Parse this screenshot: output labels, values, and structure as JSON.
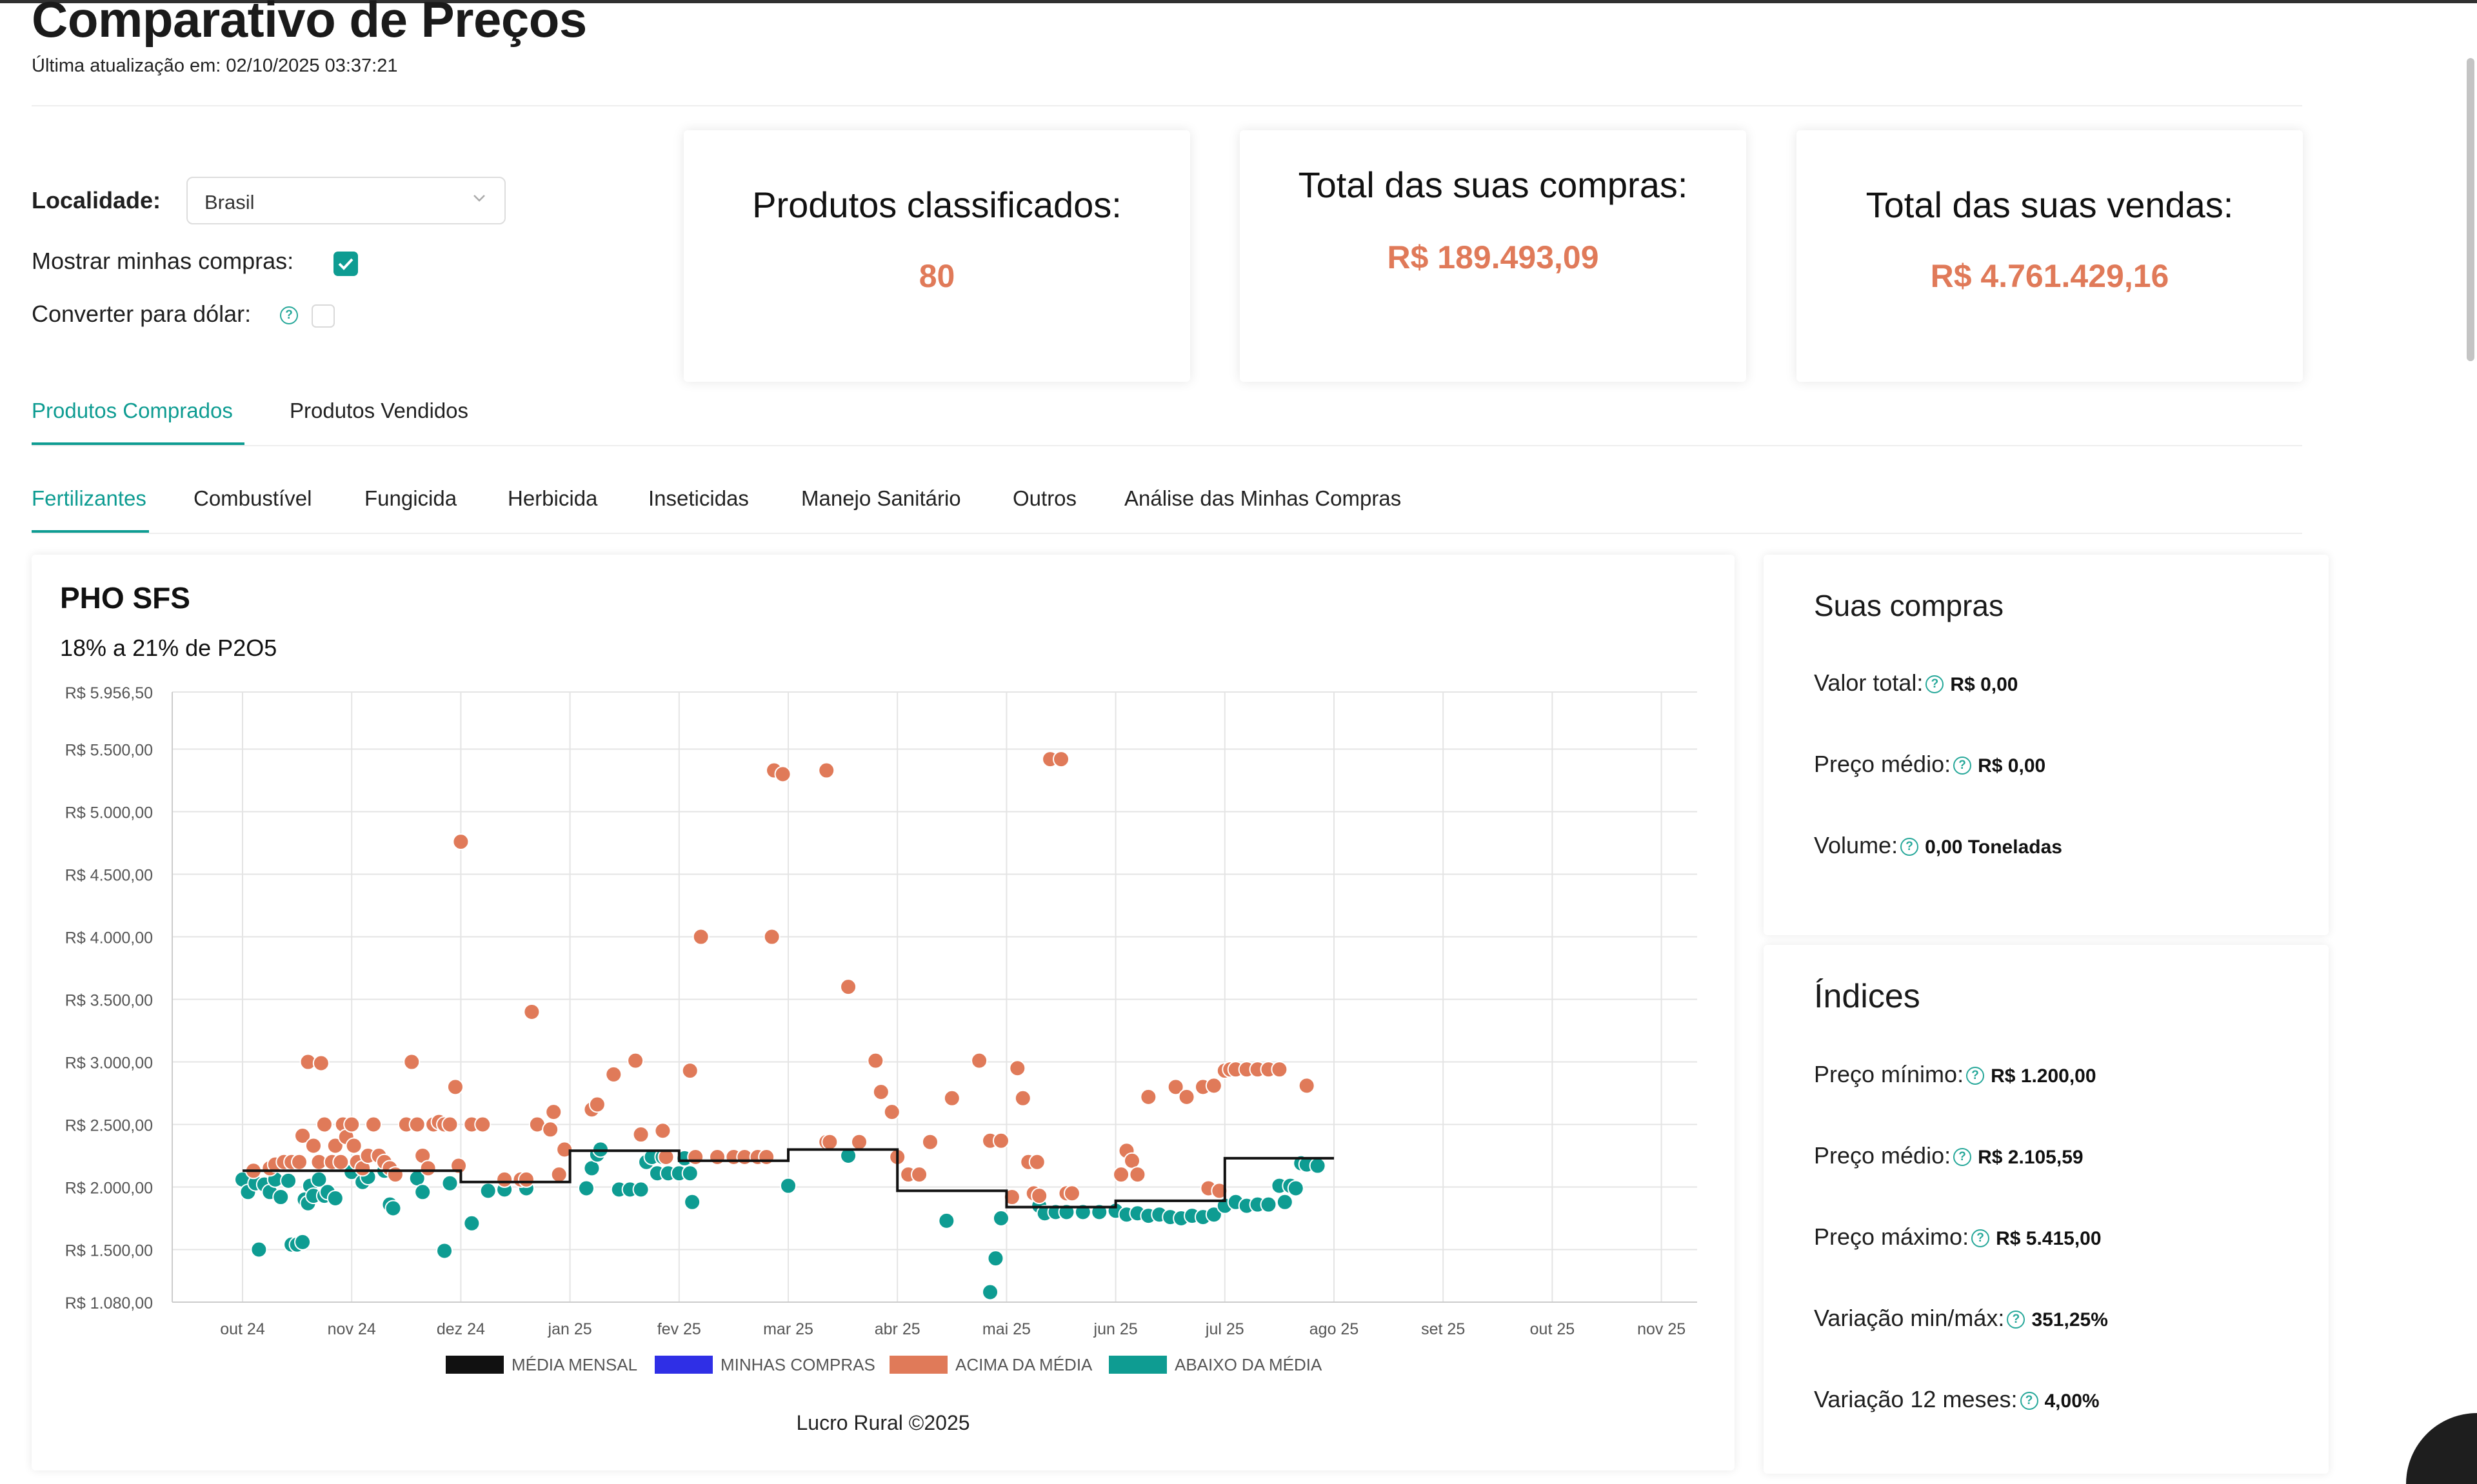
{
  "header": {
    "title": "Comparativo de Preços",
    "updated": "Última atualização em: 02/10/2025 03:37:21"
  },
  "filters": {
    "locality_label": "Localidade:",
    "locality_value": "Brasil",
    "show_purchases_label": "Mostrar minhas compras:",
    "show_purchases_checked": true,
    "convert_dollar_label": "Converter para dólar:",
    "convert_dollar_checked": false
  },
  "stats": {
    "classified_title": "Produtos classificados:",
    "classified_value": "80",
    "purchases_title": "Total das suas compras:",
    "purchases_value": "R$ 189.493,09",
    "sales_title": "Total das suas vendas:",
    "sales_value": "R$ 4.761.429,16"
  },
  "main_tabs": [
    "Produtos Comprados",
    "Produtos Vendidos"
  ],
  "category_tabs": [
    "Fertilizantes",
    "Combustível",
    "Fungicida",
    "Herbicida",
    "Inseticidas",
    "Manejo Sanitário",
    "Outros",
    "Análise das Minhas Compras"
  ],
  "product": {
    "name": "PHO SFS",
    "spec": "18% a 21% de P2O5"
  },
  "colors": {
    "accent": "#0e9c92",
    "above": "#e07a59",
    "below": "#0e9c92",
    "mine": "#2f2fe6",
    "avg": "#111111"
  },
  "chart_data": {
    "type": "scatter",
    "y_tick_labels": [
      "R$ 1.080,00",
      "R$ 1.500,00",
      "R$ 2.000,00",
      "R$ 2.500,00",
      "R$ 3.000,00",
      "R$ 3.500,00",
      "R$ 4.000,00",
      "R$ 4.500,00",
      "R$ 5.000,00",
      "R$ 5.500,00",
      "R$ 5.956,50"
    ],
    "y_tick_values": [
      1080,
      1500,
      2000,
      2500,
      3000,
      3500,
      4000,
      4500,
      5000,
      5500,
      5956.5
    ],
    "ylim": [
      1080,
      5956.5
    ],
    "x_tick_labels": [
      "out 24",
      "nov 24",
      "dez 24",
      "jan 25",
      "fev 25",
      "mar 25",
      "abr 25",
      "mai 25",
      "jun 25",
      "jul 25",
      "ago 25",
      "set 25",
      "out 25",
      "nov 25"
    ],
    "grid": true,
    "legend": [
      "MÉDIA MENSAL",
      "MINHAS COMPRAS",
      "ACIMA DA MÉDIA",
      "ABAIXO DA MÉDIA"
    ],
    "legend_position": "bottom",
    "monthly_average": [
      {
        "month": "out 24",
        "value": 2130
      },
      {
        "month": "nov 24",
        "value": 2130
      },
      {
        "month": "dez 24",
        "value": 2040
      },
      {
        "month": "jan 25",
        "value": 2290
      },
      {
        "month": "fev 25",
        "value": 2210
      },
      {
        "month": "mar 25",
        "value": 2300
      },
      {
        "month": "abr 25",
        "value": 1970
      },
      {
        "month": "mai 25",
        "value": 1840
      },
      {
        "month": "jun 25",
        "value": 1890
      },
      {
        "month": "jul 25",
        "value": 2230
      }
    ],
    "above_points": [
      [
        0.1,
        2130
      ],
      [
        0.25,
        2150
      ],
      [
        0.3,
        2180
      ],
      [
        0.38,
        2200
      ],
      [
        0.45,
        2200
      ],
      [
        0.52,
        2200
      ],
      [
        0.55,
        2410
      ],
      [
        0.6,
        3000
      ],
      [
        0.65,
        2330
      ],
      [
        0.7,
        2200
      ],
      [
        0.72,
        2990
      ],
      [
        0.75,
        2500
      ],
      [
        0.82,
        2200
      ],
      [
        0.85,
        2330
      ],
      [
        0.9,
        2200
      ],
      [
        0.92,
        2500
      ],
      [
        0.95,
        2400
      ],
      [
        1.0,
        2500
      ],
      [
        1.02,
        2330
      ],
      [
        1.05,
        2200
      ],
      [
        1.1,
        2150
      ],
      [
        1.15,
        2250
      ],
      [
        1.2,
        2500
      ],
      [
        1.25,
        2250
      ],
      [
        1.3,
        2200
      ],
      [
        1.35,
        2150
      ],
      [
        1.4,
        2100
      ],
      [
        1.5,
        2500
      ],
      [
        1.55,
        3000
      ],
      [
        1.6,
        2500
      ],
      [
        1.65,
        2250
      ],
      [
        1.7,
        2150
      ],
      [
        1.75,
        2500
      ],
      [
        1.8,
        2520
      ],
      [
        1.85,
        2500
      ],
      [
        1.9,
        2500
      ],
      [
        1.95,
        2800
      ],
      [
        1.98,
        2170
      ],
      [
        2.0,
        4760
      ],
      [
        2.1,
        2500
      ],
      [
        2.2,
        2500
      ],
      [
        2.4,
        2060
      ],
      [
        2.55,
        2060
      ],
      [
        2.6,
        2060
      ],
      [
        2.65,
        3400
      ],
      [
        2.7,
        2500
      ],
      [
        2.82,
        2460
      ],
      [
        2.85,
        2600
      ],
      [
        2.9,
        2100
      ],
      [
        2.95,
        2300
      ],
      [
        3.2,
        2620
      ],
      [
        3.25,
        2660
      ],
      [
        3.4,
        2900
      ],
      [
        3.6,
        3010
      ],
      [
        3.65,
        2420
      ],
      [
        3.85,
        2450
      ],
      [
        3.88,
        2240
      ],
      [
        4.1,
        2930
      ],
      [
        4.15,
        2240
      ],
      [
        4.2,
        4000
      ],
      [
        4.35,
        2240
      ],
      [
        4.5,
        2240
      ],
      [
        4.6,
        2240
      ],
      [
        4.72,
        2240
      ],
      [
        4.8,
        2240
      ],
      [
        4.85,
        4000
      ],
      [
        4.87,
        5330
      ],
      [
        4.95,
        5300
      ],
      [
        5.35,
        5330
      ],
      [
        5.35,
        2360
      ],
      [
        5.38,
        2360
      ],
      [
        5.55,
        3600
      ],
      [
        5.65,
        2360
      ],
      [
        5.8,
        3010
      ],
      [
        5.85,
        2760
      ],
      [
        5.95,
        2600
      ],
      [
        6.0,
        2240
      ],
      [
        6.1,
        2100
      ],
      [
        6.2,
        2100
      ],
      [
        6.3,
        2360
      ],
      [
        6.5,
        2710
      ],
      [
        6.75,
        3010
      ],
      [
        6.85,
        2370
      ],
      [
        6.95,
        2370
      ],
      [
        7.05,
        1920
      ],
      [
        7.1,
        2950
      ],
      [
        7.15,
        2710
      ],
      [
        7.2,
        2200
      ],
      [
        7.25,
        1950
      ],
      [
        7.28,
        2200
      ],
      [
        7.3,
        1930
      ],
      [
        7.4,
        5420
      ],
      [
        7.5,
        5420
      ],
      [
        7.55,
        1950
      ],
      [
        7.6,
        1950
      ],
      [
        8.05,
        2100
      ],
      [
        8.1,
        2290
      ],
      [
        8.15,
        2210
      ],
      [
        8.2,
        2100
      ],
      [
        8.3,
        2720
      ],
      [
        8.55,
        2800
      ],
      [
        8.65,
        2720
      ],
      [
        8.8,
        2800
      ],
      [
        8.85,
        1990
      ],
      [
        8.9,
        2810
      ],
      [
        8.95,
        1970
      ],
      [
        9.0,
        2930
      ],
      [
        9.05,
        2940
      ],
      [
        9.1,
        2940
      ],
      [
        9.2,
        2940
      ],
      [
        9.3,
        2940
      ],
      [
        9.4,
        2940
      ],
      [
        9.5,
        2940
      ],
      [
        9.75,
        2810
      ]
    ],
    "below_points": [
      [
        0.0,
        2060
      ],
      [
        0.05,
        1960
      ],
      [
        0.12,
        2030
      ],
      [
        0.15,
        1500
      ],
      [
        0.2,
        2020
      ],
      [
        0.25,
        1960
      ],
      [
        0.3,
        2060
      ],
      [
        0.35,
        1920
      ],
      [
        0.42,
        2050
      ],
      [
        0.45,
        1540
      ],
      [
        0.5,
        1540
      ],
      [
        0.55,
        1560
      ],
      [
        0.57,
        1900
      ],
      [
        0.6,
        1870
      ],
      [
        0.62,
        2010
      ],
      [
        0.65,
        1930
      ],
      [
        0.7,
        2060
      ],
      [
        0.75,
        1930
      ],
      [
        0.78,
        1960
      ],
      [
        0.85,
        1910
      ],
      [
        1.0,
        2120
      ],
      [
        1.1,
        2040
      ],
      [
        1.15,
        2080
      ],
      [
        1.3,
        2130
      ],
      [
        1.35,
        1860
      ],
      [
        1.38,
        1830
      ],
      [
        1.6,
        2070
      ],
      [
        1.65,
        1960
      ],
      [
        1.9,
        2030
      ],
      [
        1.85,
        1490
      ],
      [
        2.1,
        1710
      ],
      [
        2.25,
        1970
      ],
      [
        2.4,
        1980
      ],
      [
        2.6,
        1990
      ],
      [
        3.15,
        1990
      ],
      [
        3.2,
        2150
      ],
      [
        3.25,
        2260
      ],
      [
        3.28,
        2300
      ],
      [
        3.45,
        1980
      ],
      [
        3.55,
        1980
      ],
      [
        3.65,
        1980
      ],
      [
        3.7,
        2200
      ],
      [
        3.75,
        2240
      ],
      [
        3.8,
        2110
      ],
      [
        3.85,
        2240
      ],
      [
        3.9,
        2110
      ],
      [
        4.0,
        2110
      ],
      [
        4.05,
        2230
      ],
      [
        4.1,
        2110
      ],
      [
        4.12,
        1880
      ],
      [
        5.0,
        2010
      ],
      [
        5.55,
        2250
      ],
      [
        6.45,
        1730
      ],
      [
        6.85,
        1160
      ],
      [
        6.9,
        1430
      ],
      [
        6.95,
        1750
      ],
      [
        7.3,
        1850
      ],
      [
        7.35,
        1790
      ],
      [
        7.45,
        1800
      ],
      [
        7.55,
        1800
      ],
      [
        7.7,
        1800
      ],
      [
        7.85,
        1800
      ],
      [
        8.0,
        1810
      ],
      [
        8.1,
        1780
      ],
      [
        8.2,
        1790
      ],
      [
        8.3,
        1770
      ],
      [
        8.4,
        1780
      ],
      [
        8.5,
        1760
      ],
      [
        8.6,
        1750
      ],
      [
        8.7,
        1770
      ],
      [
        8.8,
        1760
      ],
      [
        8.9,
        1780
      ],
      [
        9.0,
        1850
      ],
      [
        9.1,
        1880
      ],
      [
        9.2,
        1850
      ],
      [
        9.3,
        1860
      ],
      [
        9.4,
        1860
      ],
      [
        9.5,
        2010
      ],
      [
        9.55,
        1880
      ],
      [
        9.6,
        2010
      ],
      [
        9.65,
        1990
      ],
      [
        9.7,
        2190
      ],
      [
        9.75,
        2180
      ],
      [
        9.85,
        2170
      ]
    ],
    "my_points": []
  },
  "chart_footer": "Lucro Rural ©2025",
  "purchases": {
    "title": "Suas compras",
    "rows": [
      {
        "label": "Valor total:",
        "value": "R$ 0,00"
      },
      {
        "label": "Preço médio:",
        "value": "R$ 0,00"
      },
      {
        "label": "Volume:",
        "value": "0,00 Toneladas"
      }
    ]
  },
  "indices": {
    "title": "Índices",
    "rows": [
      {
        "label": "Preço mínimo:",
        "value": "R$ 1.200,00"
      },
      {
        "label": "Preço médio:",
        "value": "R$ 2.105,59"
      },
      {
        "label": "Preço máximo:",
        "value": "R$ 5.415,00"
      },
      {
        "label": "Variação min/máx:",
        "value": "351,25%"
      },
      {
        "label": "Variação 12 meses:",
        "value": "4,00%"
      }
    ]
  }
}
